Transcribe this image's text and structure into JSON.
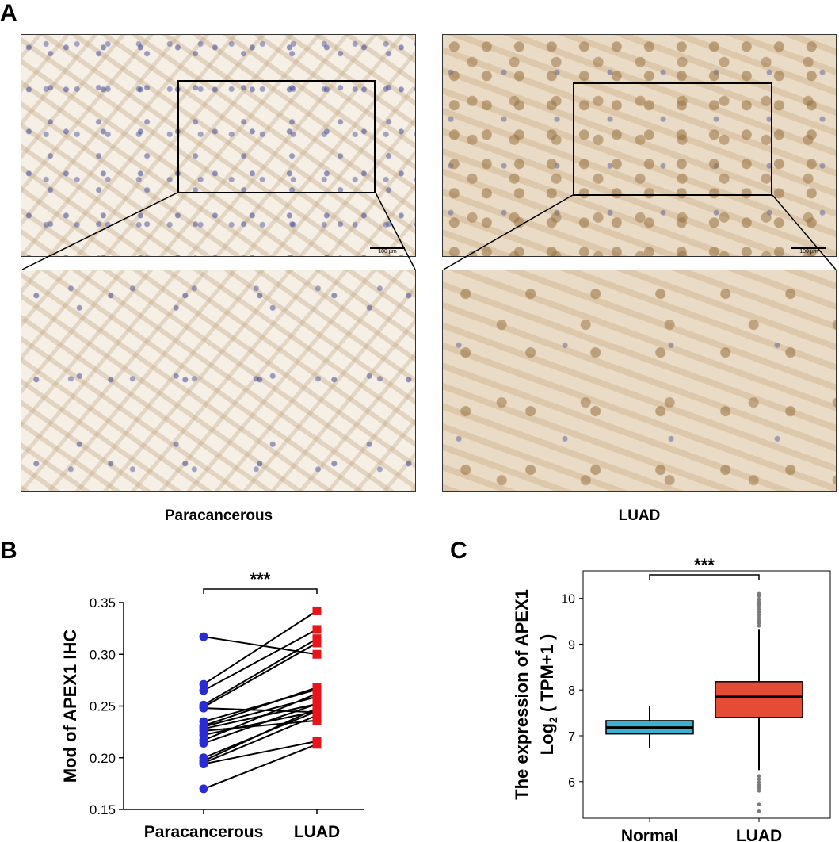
{
  "figure": {
    "panel_a": {
      "letter": "A",
      "groups": [
        {
          "label": "Paracancerous",
          "scale_label": "100 µm"
        },
        {
          "label": "LUAD",
          "scale_label": "100 µm"
        }
      ]
    },
    "panel_b": {
      "letter": "B"
    },
    "panel_c": {
      "letter": "C"
    }
  },
  "chart_data": [
    {
      "type": "line",
      "panel": "B",
      "ylabel": "Mod of APEX1 IHC",
      "xlabel": "",
      "categories": [
        "Paracancerous",
        "LUAD"
      ],
      "ylim": [
        0.15,
        0.35
      ],
      "yticks": [
        "0.15",
        "0.20",
        "0.25",
        "0.30",
        "0.35"
      ],
      "significance": "***",
      "colors": {
        "paracancerous": "#2b2bd6",
        "luad": "#e8141c",
        "line": "#000000"
      },
      "pairs": [
        [
          0.317,
          0.3
        ],
        [
          0.271,
          0.342
        ],
        [
          0.265,
          0.324
        ],
        [
          0.251,
          0.315
        ],
        [
          0.249,
          0.311
        ],
        [
          0.248,
          0.244
        ],
        [
          0.235,
          0.266
        ],
        [
          0.231,
          0.268
        ],
        [
          0.23,
          0.259
        ],
        [
          0.228,
          0.252
        ],
        [
          0.226,
          0.236
        ],
        [
          0.222,
          0.245
        ],
        [
          0.217,
          0.262
        ],
        [
          0.214,
          0.252
        ],
        [
          0.2,
          0.245
        ],
        [
          0.197,
          0.248
        ],
        [
          0.195,
          0.241
        ],
        [
          0.194,
          0.216
        ],
        [
          0.17,
          0.213
        ]
      ]
    },
    {
      "type": "box",
      "panel": "C",
      "ylabel_line1": "The expression of APEX1",
      "ylabel_line2_prefix": "Log",
      "ylabel_line2_sub": "2",
      "ylabel_line2_suffix": " ( TPM+1 )",
      "categories": [
        "Normal",
        "LUAD"
      ],
      "ylim": [
        5.2,
        10.6
      ],
      "yticks": [
        "6",
        "7",
        "8",
        "9",
        "10"
      ],
      "significance": "***",
      "boxes": [
        {
          "name": "Normal",
          "color": "#3ab1cf",
          "whisker_low": 6.74,
          "q1": 7.04,
          "median": 7.18,
          "q3": 7.33,
          "whisker_high": 7.64,
          "outliers": []
        },
        {
          "name": "LUAD",
          "color": "#e64c35",
          "whisker_low": 6.25,
          "q1": 7.4,
          "median": 7.85,
          "q3": 8.18,
          "whisker_high": 9.33,
          "outliers": [
            10.1,
            10.05,
            9.98,
            9.92,
            9.87,
            9.82,
            9.76,
            9.7,
            9.64,
            9.58,
            9.52,
            9.46,
            9.4,
            6.12,
            6.05,
            5.98,
            5.92,
            5.86,
            5.8,
            5.5,
            5.35
          ]
        }
      ]
    }
  ]
}
